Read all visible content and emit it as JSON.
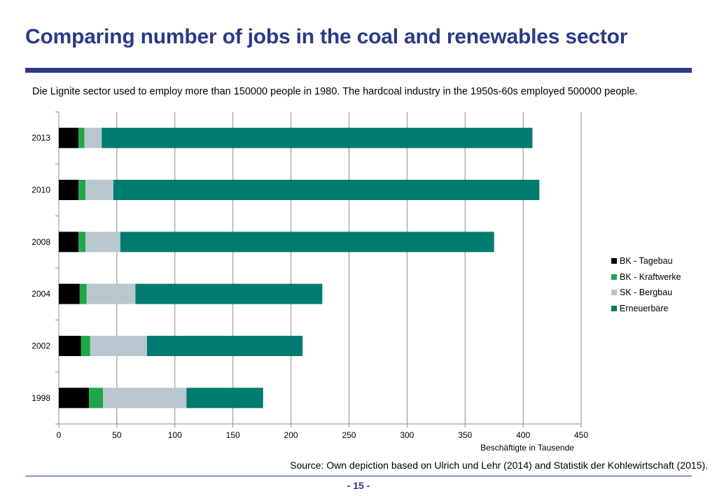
{
  "slide": {
    "title": "Comparing number of jobs in the coal and renewables sector",
    "subtitle": "Die Lignite sector used to employ more than 150000 people in 1980. The hardcoal industry in the 1950s-60s employed 500000 people.",
    "source": "Source: Own depiction based on Ulrich und Lehr (2014) and Statistik der Kohlewirtschaft (2015).",
    "page_number": "- 15 -",
    "accent_color": "#2b3a87"
  },
  "chart_data": {
    "type": "bar",
    "orientation": "horizontal",
    "stacked": true,
    "categories": [
      "1998",
      "2002",
      "2004",
      "2008",
      "2010",
      "2013"
    ],
    "series": [
      {
        "name": "BK - Tagebau",
        "color": "#000000",
        "values": [
          26,
          19,
          18,
          17,
          17,
          17
        ]
      },
      {
        "name": "BK - Kraftwerke",
        "color": "#1fa64a",
        "values": [
          12,
          8,
          6,
          6,
          6,
          5
        ]
      },
      {
        "name": "SK - Bergbau",
        "color": "#b7c7cd",
        "values": [
          72,
          49,
          42,
          30,
          24,
          15
        ]
      },
      {
        "name": "Erneuerbare",
        "color": "#007b6f",
        "values": [
          66,
          134,
          161,
          322,
          367,
          371
        ]
      }
    ],
    "xlim": [
      0,
      450
    ],
    "xticks": [
      "0",
      "50",
      "100",
      "150",
      "200",
      "250",
      "300",
      "350",
      "400",
      "450"
    ],
    "xlabel": "Beschäftigte in Tausende",
    "ylabel": "",
    "grid": "vertical",
    "legend": "right"
  }
}
